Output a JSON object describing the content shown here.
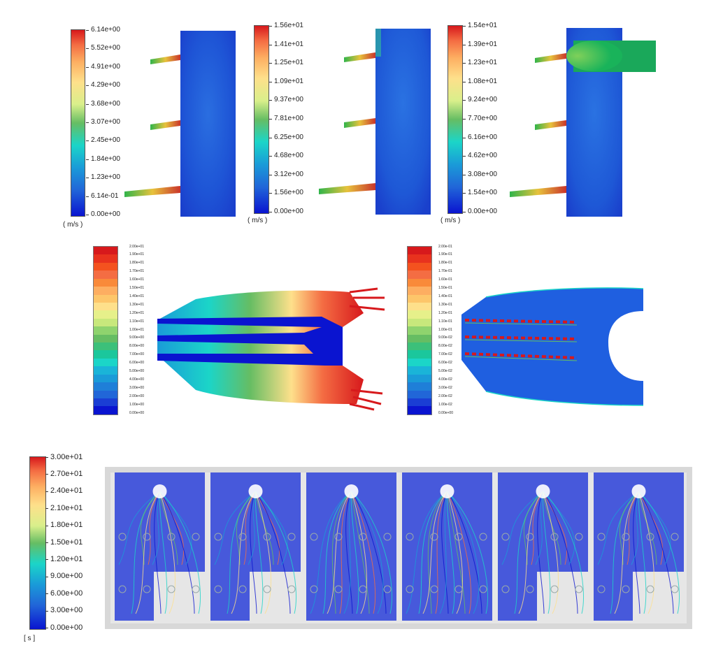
{
  "row1": {
    "legends": [
      {
        "id": "legend-1",
        "ticks": [
          "6.14e+00",
          "5.52e+00",
          "4.91e+00",
          "4.29e+00",
          "3.68e+00",
          "3.07e+00",
          "2.45e+00",
          "1.84e+00",
          "1.23e+00",
          "6.14e-01",
          "0.00e+00"
        ],
        "unit": "( m/s )"
      },
      {
        "id": "legend-2",
        "ticks": [
          "1.56e+01",
          "1.41e+01",
          "1.25e+01",
          "1.09e+01",
          "9.37e+00",
          "7.81e+00",
          "6.25e+00",
          "4.68e+00",
          "3.12e+00",
          "1.56e+00",
          "0.00e+00"
        ],
        "unit": "( m/s )"
      },
      {
        "id": "legend-3",
        "ticks": [
          "1.54e+01",
          "1.39e+01",
          "1.23e+01",
          "1.08e+01",
          "9.24e+00",
          "7.70e+00",
          "6.16e+00",
          "4.62e+00",
          "3.08e+00",
          "1.54e+00",
          "0.00e+00"
        ],
        "unit": "( m/s )"
      }
    ]
  },
  "row2": {
    "legends": [
      {
        "id": "legend-4",
        "ticks": [
          "2.00e+01",
          "1.90e+01",
          "1.80e+01",
          "1.70e+01",
          "1.60e+01",
          "1.50e+01",
          "1.40e+01",
          "1.30e+01",
          "1.20e+01",
          "1.10e+01",
          "1.00e+01",
          "9.00e+00",
          "8.00e+00",
          "7.00e+00",
          "6.00e+00",
          "5.00e+00",
          "4.00e+00",
          "3.00e+00",
          "2.00e+00",
          "1.00e+00",
          "0.00e+00"
        ]
      },
      {
        "id": "legend-5",
        "ticks": [
          "2.00e-01",
          "1.90e-01",
          "1.80e-01",
          "1.70e-01",
          "1.60e-01",
          "1.50e-01",
          "1.40e-01",
          "1.30e-01",
          "1.20e-01",
          "1.10e-01",
          "1.00e-01",
          "9.00e-02",
          "8.00e-02",
          "7.00e-02",
          "6.00e-02",
          "5.00e-02",
          "4.00e-02",
          "3.00e-02",
          "2.00e-02",
          "1.00e-02",
          "0.00e+00"
        ]
      }
    ]
  },
  "row3": {
    "legend": {
      "id": "legend-6",
      "ticks": [
        "3.00e+01",
        "2.70e+01",
        "2.40e+01",
        "2.10e+01",
        "1.80e+01",
        "1.50e+01",
        "1.20e+01",
        "9.00e+00",
        "6.00e+00",
        "3.00e+00",
        "0.00e+00"
      ],
      "unit": "[ s ]"
    }
  },
  "colors": {
    "red": "#d7191c",
    "orange": "#f46d43",
    "yellow": "#fee08b",
    "green": "#66bd63",
    "cyan": "#1bd5c8",
    "blue": "#2166d8",
    "deepblue": "#0a14d0",
    "grey": "#d8d8d8"
  }
}
